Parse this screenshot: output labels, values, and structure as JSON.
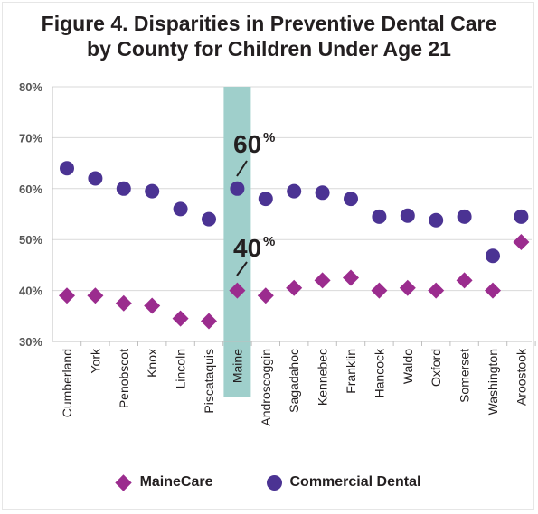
{
  "title_line1": "Figure 4. Disparities in Preventive Dental Care",
  "title_line2": "by County for Children Under Age 21",
  "colors": {
    "mainecare": "#9b2c8e",
    "commercial": "#4b3393",
    "highlight": "#9fcfcb",
    "grid": "#d9d9d9"
  },
  "annotations": {
    "commercial_value": "60",
    "mainecare_value": "40",
    "percent_sign": "%"
  },
  "legend": {
    "mainecare": "MaineCare",
    "commercial": "Commercial Dental"
  },
  "chart_data": {
    "type": "scatter",
    "title": "Figure 4. Disparities in Preventive Dental Care by County for Children Under Age 21",
    "categories": [
      "Cumberland",
      "York",
      "Penobscot",
      "Knox",
      "Lincoln",
      "Piscataquis",
      "Maine",
      "Androscoggin",
      "Sagadahoc",
      "Kennebec",
      "Franklin",
      "Hancock",
      "Waldo",
      "Oxford",
      "Somerset",
      "Washington",
      "Aroostook"
    ],
    "highlighted_category": "Maine",
    "ylim": [
      30,
      80
    ],
    "yticks": [
      "30%",
      "40%",
      "50%",
      "60%",
      "70%",
      "80%"
    ],
    "ytick_values": [
      30,
      40,
      50,
      60,
      70,
      80
    ],
    "grid": "horizontal",
    "legend_position": "bottom",
    "series": [
      {
        "name": "MaineCare",
        "marker": "diamond",
        "values": [
          39,
          39,
          37.5,
          37,
          34.5,
          34,
          40,
          39,
          40.5,
          42,
          42.5,
          40,
          40.5,
          40,
          42,
          40,
          49.5
        ]
      },
      {
        "name": "Commercial Dental",
        "marker": "circle",
        "values": [
          64,
          62,
          60,
          59.5,
          56,
          54,
          60,
          58,
          59.5,
          59.2,
          58,
          54.5,
          54.7,
          53.8,
          54.5,
          46.8,
          54.5
        ]
      }
    ]
  }
}
